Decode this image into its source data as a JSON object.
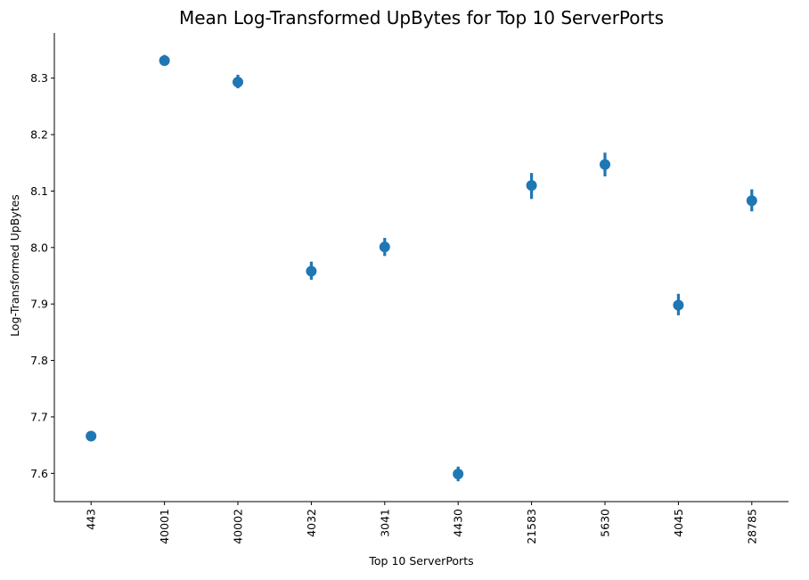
{
  "chart_data": {
    "type": "scatter",
    "title": "Mean Log-Transformed UpBytes for Top 10 ServerPorts",
    "xlabel": "Top 10 ServerPorts",
    "ylabel": "Log-Transformed UpBytes",
    "categories": [
      "443",
      "40001",
      "40002",
      "4032",
      "3041",
      "4430",
      "21583",
      "5630",
      "4045",
      "28785"
    ],
    "values": [
      7.666,
      8.331,
      8.293,
      7.958,
      8.001,
      7.599,
      8.11,
      8.147,
      7.898,
      8.083
    ],
    "ci_low": [
      7.663,
      8.322,
      8.282,
      7.943,
      7.985,
      7.586,
      8.086,
      8.126,
      7.88,
      8.064
    ],
    "ci_high": [
      7.669,
      8.341,
      8.306,
      7.975,
      8.017,
      7.612,
      8.132,
      8.168,
      7.918,
      8.103
    ],
    "yticks": [
      7.6,
      7.7,
      7.8,
      7.9,
      8.0,
      8.1,
      8.2,
      8.3
    ],
    "ytick_labels": [
      "7.6",
      "7.7",
      "7.8",
      "7.9",
      "8.0",
      "8.1",
      "8.2",
      "8.3"
    ],
    "ylim": [
      7.55,
      8.38
    ],
    "grid": false,
    "legend": "none",
    "color": "#1f77b4",
    "tick_label_rotation": 90
  }
}
